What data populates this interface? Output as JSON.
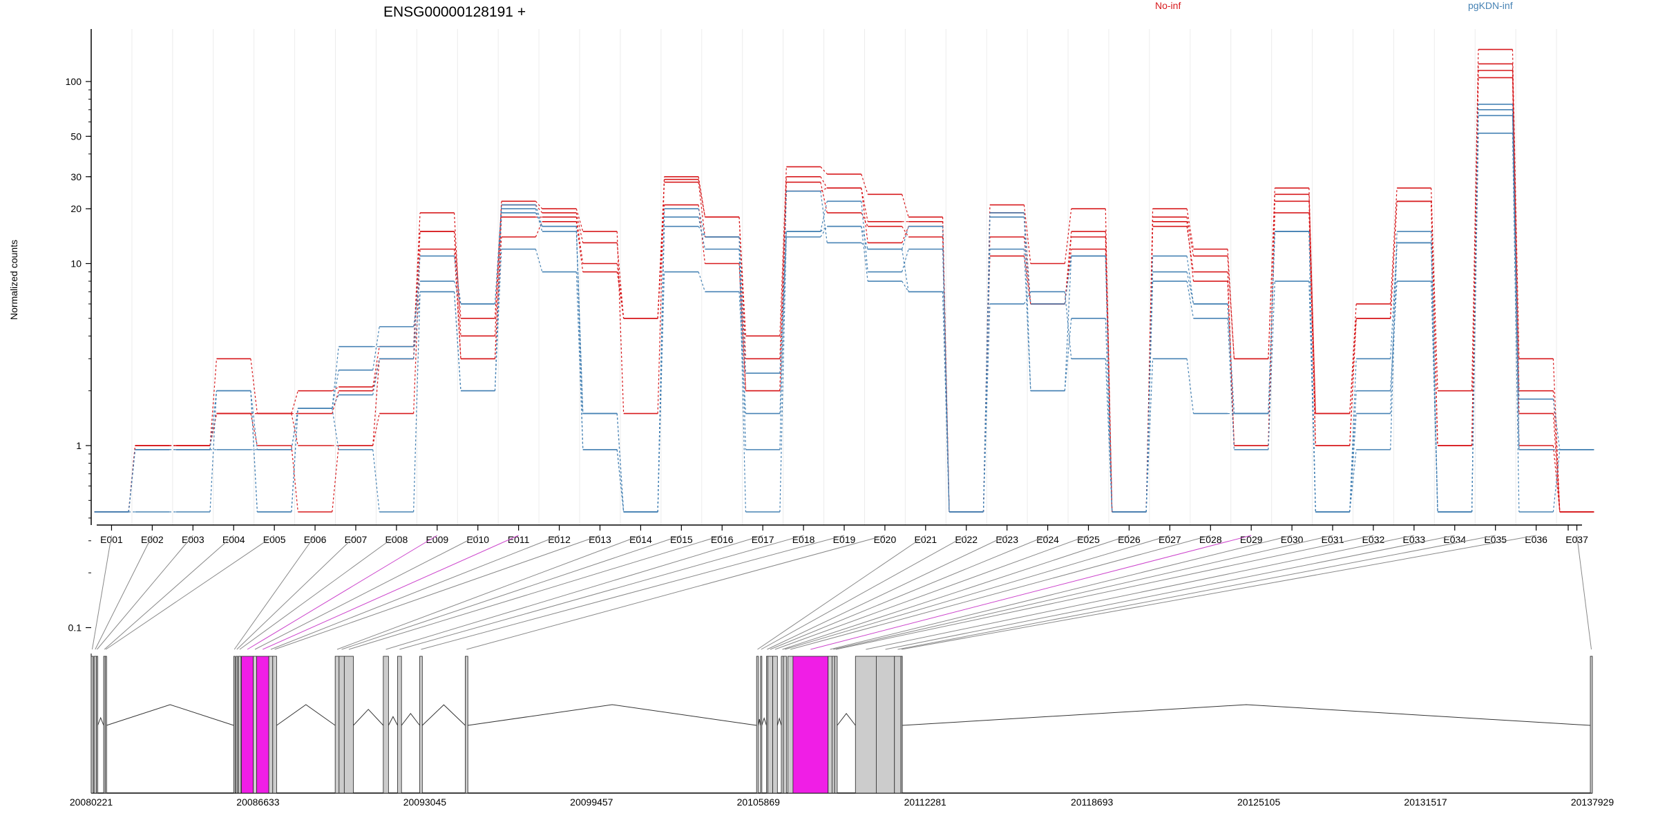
{
  "chart_data": {
    "type": "line",
    "title": "ENSG00000128191 +",
    "ylabel": "Normalized counts",
    "xlabel": "",
    "y_scale": "log (with 0 plotted at the bottom floor)",
    "ylim": [
      0.08,
      190
    ],
    "y_ticks": [
      {
        "value": 0.1,
        "label": "0.1"
      },
      {
        "value": 1,
        "label": "1"
      },
      {
        "value": 10,
        "label": "10"
      },
      {
        "value": 20,
        "label": "20"
      },
      {
        "value": 30,
        "label": "30"
      },
      {
        "value": 50,
        "label": "50"
      },
      {
        "value": 100,
        "label": "100"
      }
    ],
    "legend_placement": "top",
    "colors": {
      "no_inf": "#d7191c",
      "pgkdn_inf": "#4682b4",
      "highlight": "#f01ee6",
      "exon_fill": "#cccccc"
    },
    "categories": [
      "E001",
      "E002",
      "E003",
      "E004",
      "E005",
      "E006",
      "E007",
      "E008",
      "E009",
      "E010",
      "E011",
      "E012",
      "E013",
      "E014",
      "E015",
      "E016",
      "E017",
      "E018",
      "E019",
      "E020",
      "E021",
      "E022",
      "E023",
      "E024",
      "E025",
      "E026",
      "E027",
      "E028",
      "E029",
      "E030",
      "E031",
      "E032",
      "E033",
      "E034",
      "E035",
      "E036",
      "E037"
    ],
    "groups": [
      {
        "name": "No-inf",
        "color": "#d7191c",
        "series": [
          {
            "values": [
              0,
              1,
              1,
              3,
              1.5,
              2,
              2.1,
              3.5,
              19,
              4,
              22,
              20,
              15,
              1.5,
              30,
              18,
              4,
              34,
              31,
              24,
              18,
              0,
              21,
              10,
              20,
              0,
              20,
              12,
              3,
              26,
              1.5,
              6,
              26,
              2,
              150,
              3,
              0
            ]
          },
          {
            "values": [
              0,
              1,
              1,
              1.5,
              1.5,
              1.5,
              2,
              3,
              15,
              5,
              21,
              19,
              13,
              5,
              29,
              18,
              3,
              30,
              26,
              17,
              17,
              0,
              19,
              6,
              15,
              0,
              18,
              11,
              3,
              24,
              1.5,
              5,
              22,
              1,
              125,
              2,
              0
            ]
          },
          {
            "values": [
              0,
              1,
              1,
              1.5,
              1.5,
              1,
              1,
              1.5,
              12,
              3,
              14,
              17,
              9,
              5,
              21,
              10,
              2,
              28,
              19,
              16,
              14,
              0,
              14,
              6,
              14,
              0,
              16,
              9,
              1,
              19,
              1,
              5,
              22,
              1,
              115,
              1.5,
              0
            ]
          },
          {
            "values": [
              0,
              1,
              1,
              1.5,
              1,
              0,
              1,
              3,
              15,
              3,
              18,
              18,
              10,
              5,
              28,
              14,
              2,
              25,
              26,
              13,
              16,
              0,
              11,
              6,
              12,
              0,
              17,
              8,
              1,
              22,
              1,
              5,
              22,
              1,
              105,
              1,
              0
            ]
          }
        ]
      },
      {
        "name": "pgKDN-inf",
        "color": "#4682b4",
        "series": [
          {
            "values": [
              0,
              0.95,
              0.95,
              2,
              0,
              1.6,
              2.6,
              4.5,
              8,
              6,
              19,
              16,
              1.5,
              0,
              20,
              14,
              2.5,
              15,
              16,
              12,
              16,
              0,
              19,
              2,
              11,
              0,
              11,
              6,
              1.5,
              15,
              0,
              1.5,
              15,
              0,
              75,
              1.8,
              0.95
            ]
          },
          {
            "values": [
              0,
              0.95,
              0.95,
              2,
              0.95,
              1.6,
              3.5,
              3.5,
              11,
              6,
              21,
              16,
              0.95,
              0,
              18,
              12,
              0,
              15,
              22,
              9,
              12,
              0,
              18,
              6,
              11,
              0,
              9,
              6,
              1.5,
              15,
              0,
              3,
              13,
              0,
              70,
              0.95,
              0.95
            ]
          },
          {
            "values": [
              0,
              0.95,
              0.95,
              0.95,
              0.95,
              1.6,
              1.9,
              3,
              7,
              2,
              12,
              9,
              0.95,
              0,
              9,
              7,
              1.5,
              14,
              16,
              8,
              7,
              0,
              12,
              2,
              5,
              0,
              8,
              5,
              0.95,
              8,
              0,
              0.95,
              13,
              0,
              65,
              0.95,
              0.95
            ]
          },
          {
            "values": [
              0,
              0,
              0,
              2,
              0,
              1.6,
              0.95,
              0,
              7,
              2,
              20,
              15,
              1.5,
              0,
              16,
              14,
              0.95,
              25,
              13,
              12,
              7,
              0,
              6,
              7,
              3,
              0,
              3,
              1.5,
              1.5,
              15,
              0,
              2,
              8,
              0,
              52,
              0,
              0.95
            ]
          }
        ]
      }
    ],
    "genomic_axis": {
      "start": 20080221,
      "end": 20137929,
      "tick_labels": [
        "20080221",
        "20086633",
        "20093045",
        "20099457",
        "20105869",
        "20112281",
        "20118693",
        "20125105",
        "20131517",
        "20137929"
      ]
    },
    "exons": [
      {
        "id": "E001",
        "start": 20080221,
        "end": 20080300,
        "highlight": false
      },
      {
        "id": "E002",
        "start": 20080330,
        "end": 20080420,
        "highlight": false
      },
      {
        "id": "E003",
        "start": 20080420,
        "end": 20080470,
        "highlight": false
      },
      {
        "id": "E004",
        "start": 20080700,
        "end": 20080760,
        "highlight": false
      },
      {
        "id": "E005",
        "start": 20080760,
        "end": 20080810,
        "highlight": false
      },
      {
        "id": "E006",
        "start": 20085700,
        "end": 20085750,
        "highlight": false
      },
      {
        "id": "E007",
        "start": 20085790,
        "end": 20085850,
        "highlight": false
      },
      {
        "id": "E008",
        "start": 20085880,
        "end": 20085980,
        "highlight": false
      },
      {
        "id": "E009",
        "start": 20086000,
        "end": 20086450,
        "highlight": true
      },
      {
        "id": "E010",
        "start": 20086450,
        "end": 20086580,
        "highlight": false
      },
      {
        "id": "E011",
        "start": 20086580,
        "end": 20087050,
        "highlight": true
      },
      {
        "id": "E012",
        "start": 20087050,
        "end": 20087200,
        "highlight": false
      },
      {
        "id": "E013",
        "start": 20087200,
        "end": 20087350,
        "highlight": false
      },
      {
        "id": "E014",
        "start": 20089600,
        "end": 20089750,
        "highlight": false
      },
      {
        "id": "E015",
        "start": 20089750,
        "end": 20089950,
        "highlight": false
      },
      {
        "id": "E016",
        "start": 20089950,
        "end": 20090300,
        "highlight": false
      },
      {
        "id": "E017",
        "start": 20091450,
        "end": 20091650,
        "highlight": false
      },
      {
        "id": "E018",
        "start": 20092000,
        "end": 20092150,
        "highlight": false
      },
      {
        "id": "E019",
        "start": 20092850,
        "end": 20092950,
        "highlight": false
      },
      {
        "id": "E020",
        "start": 20094600,
        "end": 20094700,
        "highlight": false
      },
      {
        "id": "E021",
        "start": 20105800,
        "end": 20105870,
        "highlight": false
      },
      {
        "id": "E022",
        "start": 20105950,
        "end": 20106000,
        "highlight": false
      },
      {
        "id": "E023",
        "start": 20106180,
        "end": 20106230,
        "highlight": false
      },
      {
        "id": "E024",
        "start": 20106230,
        "end": 20106420,
        "highlight": false
      },
      {
        "id": "E025",
        "start": 20106420,
        "end": 20106600,
        "highlight": false
      },
      {
        "id": "E026",
        "start": 20106750,
        "end": 20106830,
        "highlight": false
      },
      {
        "id": "E027",
        "start": 20106830,
        "end": 20106950,
        "highlight": false
      },
      {
        "id": "E028",
        "start": 20107000,
        "end": 20107200,
        "highlight": false
      },
      {
        "id": "E029",
        "start": 20107200,
        "end": 20108550,
        "highlight": true
      },
      {
        "id": "E030",
        "start": 20108550,
        "end": 20108700,
        "highlight": false
      },
      {
        "id": "E031",
        "start": 20108700,
        "end": 20108800,
        "highlight": false
      },
      {
        "id": "E032",
        "start": 20108800,
        "end": 20108900,
        "highlight": false
      },
      {
        "id": "E033",
        "start": 20109600,
        "end": 20110400,
        "highlight": false
      },
      {
        "id": "E034",
        "start": 20110400,
        "end": 20111100,
        "highlight": false
      },
      {
        "id": "E035",
        "start": 20111100,
        "end": 20111350,
        "highlight": false
      },
      {
        "id": "E036",
        "start": 20111350,
        "end": 20111400,
        "highlight": false
      },
      {
        "id": "E037",
        "start": 20137850,
        "end": 20137929,
        "highlight": false
      }
    ],
    "connector_highlight_exons": [
      "E009",
      "E011",
      "E029"
    ],
    "grid": false
  }
}
